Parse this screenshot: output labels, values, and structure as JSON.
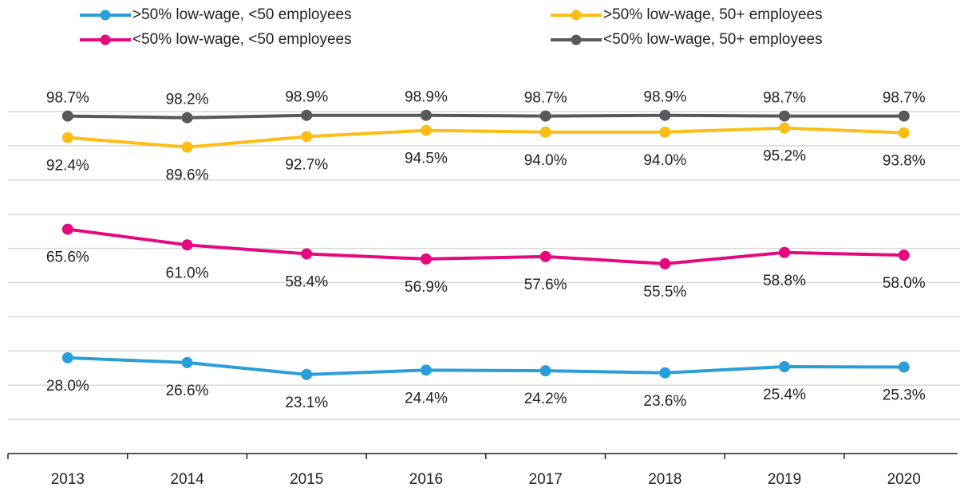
{
  "chart_data": {
    "type": "line",
    "categories": [
      "2013",
      "2014",
      "2015",
      "2016",
      "2017",
      "2018",
      "2019",
      "2020"
    ],
    "series": [
      {
        "name": ">50% low-wage, <50 employees",
        "color": "#2a9ed8",
        "values": [
          28.0,
          26.6,
          23.1,
          24.4,
          24.2,
          23.6,
          25.4,
          25.3
        ],
        "value_labels": [
          "28.0%",
          "26.6%",
          "23.1%",
          "24.4%",
          "24.2%",
          "23.6%",
          "25.4%",
          "25.3%"
        ]
      },
      {
        "name": ">50% low-wage, 50+ employees",
        "color": "#fbbd16",
        "values": [
          92.4,
          89.6,
          92.7,
          94.5,
          94.0,
          94.0,
          95.2,
          93.8
        ],
        "value_labels": [
          "92.4%",
          "89.6%",
          "92.7%",
          "94.5%",
          "94.0%",
          "94.0%",
          "95.2%",
          "93.8%"
        ]
      },
      {
        "name": "<50% low-wage, <50 employees",
        "color": "#e5087f",
        "values": [
          65.6,
          61.0,
          58.4,
          56.9,
          57.6,
          55.5,
          58.8,
          58.0
        ],
        "value_labels": [
          "65.6%",
          "61.0%",
          "58.4%",
          "56.9%",
          "57.6%",
          "55.5%",
          "58.8%",
          "58.0%"
        ]
      },
      {
        "name": "<50% low-wage, 50+ employees",
        "color": "#59595b",
        "values": [
          98.7,
          98.2,
          98.9,
          98.9,
          98.7,
          98.9,
          98.7,
          98.7
        ],
        "value_labels": [
          "98.7%",
          "98.2%",
          "98.9%",
          "98.9%",
          "98.7%",
          "98.9%",
          "98.7%",
          "98.7%"
        ]
      }
    ],
    "ylim": [
      0,
      100
    ],
    "yticks": [
      10,
      20,
      30,
      40,
      50,
      60,
      70,
      80,
      90,
      100
    ],
    "grid": true
  }
}
